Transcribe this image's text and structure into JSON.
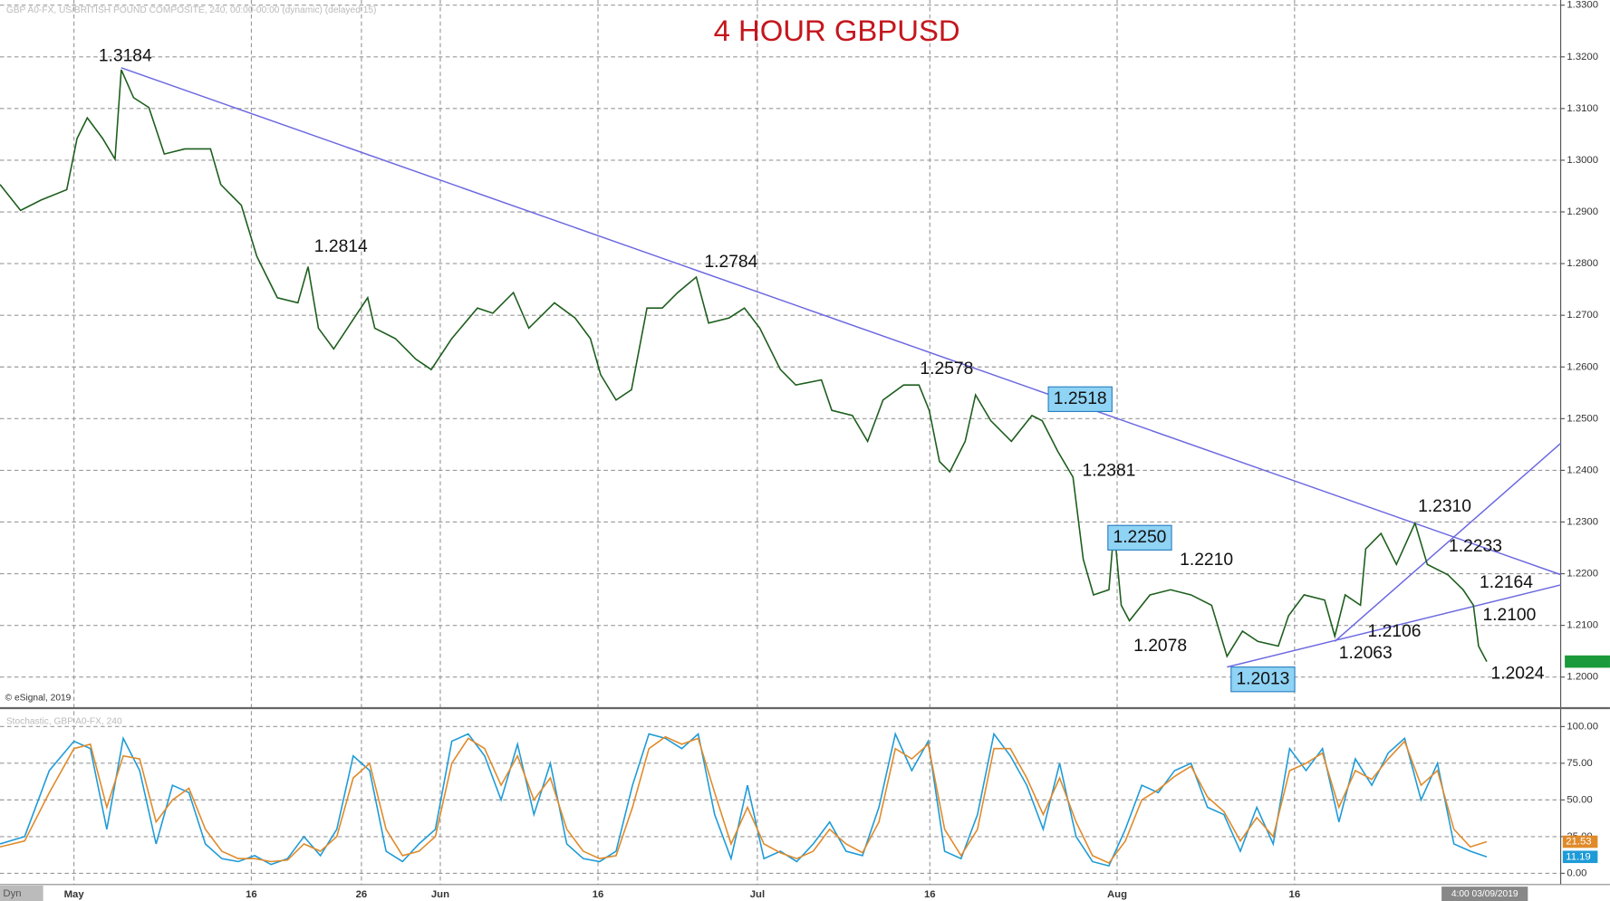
{
  "chart_data": [
    {
      "type": "line",
      "title": "4 HOUR GBPUSD",
      "header": "GBP A0-FX, US/BRITISH POUND COMPOSITE, 240, 00:00-00:00 (dynamic) (delayed 15)",
      "source": "© eSignal, 2019",
      "mode": "Dyn",
      "last_time": "4:00 03/09/2019",
      "x": [
        -4.5,
        -3.25,
        -2,
        -0.44,
        0.19,
        0.81,
        1.75,
        2.5,
        2.88,
        3.63,
        4.56,
        5.5,
        6.75,
        8.31,
        8.94,
        10.19,
        11.13,
        12.38,
        13.63,
        14.25,
        14.88,
        15.81,
        17.06,
        17.88,
        18.31,
        19.56,
        20.81,
        21.75,
        23,
        24.56,
        25.5,
        26.75,
        27.69,
        29.25,
        30.5,
        31.44,
        32.06,
        33,
        33.94,
        34.88,
        35.81,
        36.75,
        37.88,
        38.63,
        39.88,
        40.81,
        41.75,
        43,
        43.94,
        45.5,
        46.13,
        47.38,
        48.31,
        49.25,
        50.5,
        51.44,
        52.06,
        52.69,
        53.31,
        54.25,
        54.88,
        55.81,
        57.06,
        58.31,
        58.94,
        59.88,
        60.81,
        61.44,
        62.06,
        63,
        63.31,
        63.75,
        64.25,
        65.5,
        66.75,
        68,
        69.25,
        70.19,
        71.13,
        72.06,
        73.31,
        73.94,
        74.88,
        76.13,
        76.75,
        77.38,
        78.31,
        78.63,
        79.56,
        80.5,
        81.63,
        82.38,
        83.63,
        84.56,
        85.19,
        85.5,
        86
      ],
      "values": [
        1.2953,
        1.2903,
        1.2923,
        1.2943,
        1.3042,
        1.3082,
        1.3042,
        1.3002,
        1.3175,
        1.3121,
        1.3102,
        1.3012,
        1.3022,
        1.3022,
        1.2953,
        1.2913,
        1.2814,
        1.2734,
        1.2724,
        1.2794,
        1.2675,
        1.2635,
        1.2695,
        1.2734,
        1.2675,
        1.2655,
        1.2615,
        1.2595,
        1.2655,
        1.2714,
        1.2704,
        1.2744,
        1.2675,
        1.2724,
        1.2695,
        1.2655,
        1.2585,
        1.2536,
        1.2556,
        1.2714,
        1.2714,
        1.2744,
        1.2774,
        1.2685,
        1.2695,
        1.2714,
        1.2675,
        1.2595,
        1.2565,
        1.2575,
        1.2516,
        1.2506,
        1.2456,
        1.2536,
        1.2565,
        1.2565,
        1.2516,
        1.2417,
        1.2397,
        1.2456,
        1.2546,
        1.2496,
        1.2456,
        1.2506,
        1.2496,
        1.2437,
        1.2387,
        1.2228,
        1.2159,
        1.2169,
        1.2288,
        1.2139,
        1.2109,
        1.2159,
        1.2169,
        1.2159,
        1.2139,
        1.204,
        1.2089,
        1.2069,
        1.206,
        1.2119,
        1.2159,
        1.2149,
        1.2079,
        1.2159,
        1.2139,
        1.2248,
        1.2278,
        1.2218,
        1.2298,
        1.2218,
        1.2198,
        1.2169,
        1.2139,
        1.206,
        1.203
      ],
      "color": "#1d5e1d",
      "tag_color": "#1a9a3a",
      "xlim": [
        -4.5,
        90.5
      ],
      "xticks": [
        {
          "value": 0,
          "label": "May"
        },
        {
          "value": 10.8,
          "label": "16"
        },
        {
          "value": 17.5,
          "label": "26"
        },
        {
          "value": 22.3,
          "label": "Jun"
        },
        {
          "value": 31.9,
          "label": "16"
        },
        {
          "value": 41.6,
          "label": "Jul"
        },
        {
          "value": 52.1,
          "label": "16"
        },
        {
          "value": 63.5,
          "label": "Aug"
        },
        {
          "value": 74.3,
          "label": "16"
        }
      ],
      "ylim": [
        1.1944,
        1.331
      ],
      "yticks": [
        {
          "value": 1.33,
          "label": "1.3300"
        },
        {
          "value": 1.32,
          "label": "1.3200"
        },
        {
          "value": 1.31,
          "label": "1.3100"
        },
        {
          "value": 1.3,
          "label": "1.3000"
        },
        {
          "value": 1.29,
          "label": "1.2900"
        },
        {
          "value": 1.28,
          "label": "1.2800"
        },
        {
          "value": 1.27,
          "label": "1.2700"
        },
        {
          "value": 1.26,
          "label": "1.2600"
        },
        {
          "value": 1.25,
          "label": "1.2500"
        },
        {
          "value": 1.24,
          "label": "1.2400"
        },
        {
          "value": 1.23,
          "label": "1.2300"
        },
        {
          "value": 1.22,
          "label": "1.2200"
        },
        {
          "value": 1.21,
          "label": "1.2100"
        },
        {
          "value": 1.2,
          "label": "1.2000"
        }
      ],
      "grid": true,
      "annotations": [
        "1.3184",
        "1.2814",
        "1.2784",
        "1.2578",
        "1.2518",
        "1.2381",
        "1.2250",
        "1.2210",
        "1.2078",
        "1.2013",
        "1.2310",
        "1.2233",
        "1.2164",
        "1.2106",
        "1.2063",
        "1.2100",
        "1.2024"
      ]
    },
    {
      "type": "line",
      "title": "Stochastic, GBP A0-FX, 240",
      "x": [
        -4.5,
        -3,
        -1.5,
        0,
        1,
        2,
        3,
        4,
        5,
        6,
        7,
        8,
        9,
        10,
        11,
        12,
        13,
        14,
        15,
        16,
        17,
        18,
        19,
        20,
        21,
        22,
        23,
        24,
        25,
        26,
        27,
        28,
        29,
        30,
        31,
        32,
        33,
        34,
        35,
        36,
        37,
        38,
        39,
        40,
        41,
        42,
        43,
        44,
        45,
        46,
        47,
        48,
        49,
        50,
        51,
        52,
        53,
        54,
        55,
        56,
        57,
        58,
        59,
        60,
        61,
        62,
        63,
        64,
        65,
        66,
        67,
        68,
        69,
        70,
        71,
        72,
        73,
        74,
        75,
        76,
        77,
        78,
        79,
        80,
        81,
        82,
        83,
        84,
        85,
        86
      ],
      "series": [
        {
          "color": "#1e9bd7",
          "values": [
            20,
            25,
            70,
            90,
            85,
            30,
            92,
            70,
            20,
            60,
            55,
            20,
            10,
            8,
            12,
            6,
            10,
            25,
            12,
            30,
            80,
            70,
            15,
            8,
            20,
            30,
            90,
            95,
            80,
            50,
            88,
            40,
            75,
            20,
            10,
            8,
            15,
            60,
            95,
            92,
            85,
            95,
            40,
            10,
            60,
            10,
            15,
            8,
            20,
            35,
            15,
            12,
            45,
            95,
            70,
            90,
            15,
            10,
            40,
            95,
            80,
            60,
            30,
            75,
            25,
            8,
            5,
            30,
            60,
            55,
            70,
            75,
            45,
            40,
            15,
            45,
            20,
            85,
            70,
            85,
            35,
            78,
            60,
            82,
            92,
            50,
            75,
            20,
            15,
            11.19
          ]
        },
        {
          "color": "#e08a2a",
          "values": [
            18,
            22,
            55,
            85,
            88,
            45,
            80,
            78,
            35,
            50,
            58,
            30,
            15,
            10,
            10,
            8,
            9,
            20,
            15,
            25,
            65,
            75,
            30,
            12,
            15,
            25,
            75,
            92,
            85,
            60,
            80,
            50,
            65,
            30,
            15,
            10,
            12,
            45,
            85,
            93,
            88,
            92,
            55,
            20,
            45,
            20,
            14,
            10,
            15,
            30,
            20,
            14,
            35,
            85,
            78,
            88,
            30,
            12,
            30,
            85,
            85,
            65,
            40,
            65,
            35,
            12,
            7,
            22,
            50,
            57,
            66,
            73,
            52,
            42,
            22,
            38,
            25,
            70,
            75,
            82,
            45,
            70,
            64,
            78,
            90,
            60,
            70,
            30,
            18,
            21.53
          ]
        }
      ],
      "xlim": [
        -4.5,
        90.5
      ],
      "ylim": [
        -4.9,
        111.2
      ],
      "yticks": [
        {
          "value": 0,
          "label": "0.00"
        },
        {
          "value": 25,
          "label": "25.00"
        },
        {
          "value": 50,
          "label": "50.00"
        },
        {
          "value": 75,
          "label": "75.00"
        },
        {
          "value": 100,
          "label": "100.00"
        }
      ],
      "grid": true
    }
  ]
}
